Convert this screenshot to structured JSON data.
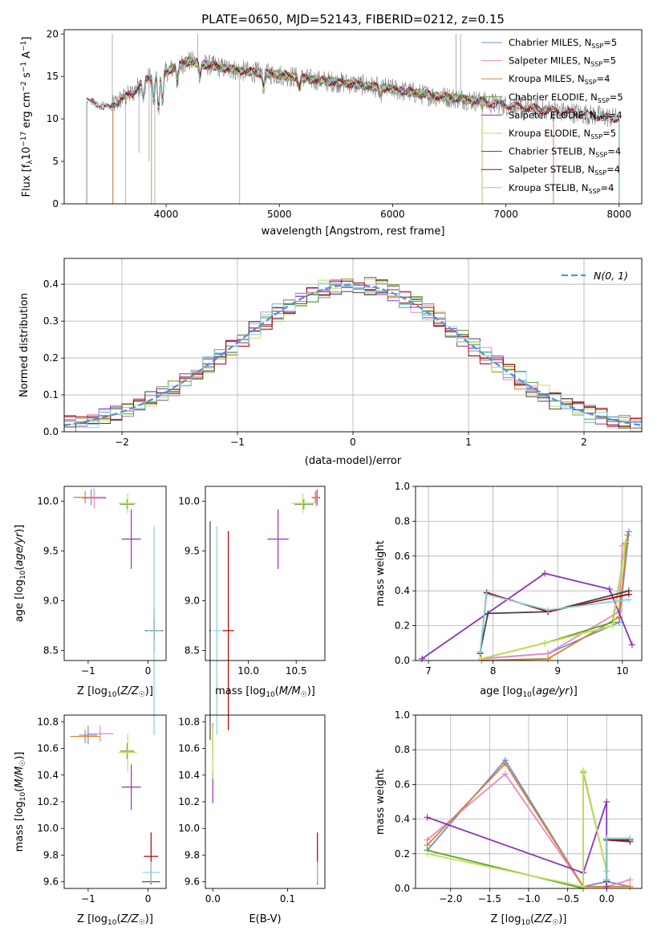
{
  "figure": {
    "title": "PLATE=0650, MJD=52143, FIBERID=0212, z=0.15"
  },
  "colors": {
    "Chabrier MILES": "#6a8fdc",
    "Salpeter MILES": "#e58ac2",
    "Kroupa MILES": "#d8842a",
    "Chabrier ELODIE": "#5aa02c",
    "Salpeter ELODIE": "#9032b8",
    "Kroupa ELODIE": "#c0e050",
    "Chabrier STELIB": "#444444",
    "Salpeter STELIB": "#b00000",
    "Kroupa STELIB": "#7fd6dc",
    "normal": "#5b8fd8",
    "data": "#808080"
  },
  "chart_data": [
    {
      "type": "line",
      "title": "PLATE=0650, MJD=52143, FIBERID=0212, z=0.15",
      "xlabel": "wavelength [Angstrom, rest frame]",
      "ylabel": "Flux [f_λ 10^-17 erg cm^-2 s^-1 A^-1]",
      "xlim": [
        3100,
        8200
      ],
      "ylim": [
        0,
        20.5
      ],
      "xticks": [
        4000,
        5000,
        6000,
        7000,
        8000
      ],
      "yticks": [
        0,
        5,
        10,
        15,
        20
      ],
      "legend_position": "right",
      "legend": [
        {
          "label": "Chabrier MILES, N",
          "sub": "SSP",
          "suffix": "=5",
          "key": "Chabrier MILES"
        },
        {
          "label": "Salpeter MILES, N",
          "sub": "SSP",
          "suffix": "=5",
          "key": "Salpeter MILES"
        },
        {
          "label": "Kroupa MILES, N",
          "sub": "SSP",
          "suffix": "=4",
          "key": "Kroupa MILES"
        },
        {
          "label": "Chabrier ELODIE, N",
          "sub": "SSP",
          "suffix": "=5",
          "key": "Chabrier ELODIE"
        },
        {
          "label": "Salpeter ELODIE, N",
          "sub": "SSP",
          "suffix": "=4",
          "key": "Salpeter ELODIE"
        },
        {
          "label": "Kroupa ELODIE, N",
          "sub": "SSP",
          "suffix": "=5",
          "key": "Kroupa ELODIE"
        },
        {
          "label": "Chabrier STELIB, N",
          "sub": "SSP",
          "suffix": "=4",
          "key": "Chabrier STELIB"
        },
        {
          "label": "Salpeter STELIB, N",
          "sub": "SSP",
          "suffix": "=4",
          "key": "Salpeter STELIB"
        },
        {
          "label": "Kroupa STELIB, N",
          "sub": "SSP",
          "suffix": "=4",
          "key": "Kroupa STELIB"
        }
      ],
      "continuum": [
        [
          3300,
          12.0
        ],
        [
          3400,
          11.8
        ],
        [
          3500,
          11.2
        ],
        [
          3600,
          12.3
        ],
        [
          3700,
          13.0
        ],
        [
          3800,
          14.5
        ],
        [
          3900,
          15.2
        ],
        [
          4000,
          15.5
        ],
        [
          4100,
          16.3
        ],
        [
          4200,
          16.8
        ],
        [
          4300,
          16.5
        ],
        [
          4500,
          16.0
        ],
        [
          4700,
          15.6
        ],
        [
          5000,
          15.2
        ],
        [
          5300,
          14.6
        ],
        [
          5600,
          14.2
        ],
        [
          6000,
          13.5
        ],
        [
          6300,
          12.8
        ],
        [
          6600,
          12.4
        ],
        [
          7000,
          11.6
        ],
        [
          7400,
          11.0
        ],
        [
          7800,
          10.4
        ],
        [
          8000,
          10.0
        ]
      ]
    },
    {
      "type": "bar",
      "xlabel": "(data-model)/error",
      "ylabel": "Normed distribution",
      "xlim": [
        -2.5,
        2.5
      ],
      "ylim": [
        0,
        0.47
      ],
      "xticks": [
        -2,
        -1,
        0,
        1,
        2
      ],
      "yticks": [
        0.0,
        0.1,
        0.2,
        0.3,
        0.4
      ],
      "grid": true,
      "legend_position": "top-right",
      "legend_label": "N(0, 1)",
      "bin_width": 0.1,
      "bin_start": -2.5
    },
    {
      "type": "scatter",
      "xlabel": "Z [log10(Z/Z☉)]",
      "ylabel": "age [log10(age/yr)]",
      "xlim": [
        -1.4,
        0.3
      ],
      "ylim": [
        8.4,
        10.15
      ],
      "xticks": [
        -1,
        0
      ],
      "yticks": [
        8.5,
        9.0,
        9.5,
        10.0
      ],
      "points": [
        {
          "key": "Chabrier MILES",
          "x": -0.95,
          "y": 10.04,
          "xerr": 0.25,
          "yerr": 0.08
        },
        {
          "key": "Salpeter MILES",
          "x": -0.9,
          "y": 10.03,
          "xerr": 0.2,
          "yerr": 0.1
        },
        {
          "key": "Kroupa MILES",
          "x": -1.05,
          "y": 10.04,
          "xerr": 0.2,
          "yerr": 0.06
        },
        {
          "key": "Chabrier ELODIE",
          "x": -0.35,
          "y": 9.97,
          "xerr": 0.12,
          "yerr": 0.05
        },
        {
          "key": "Salpeter ELODIE",
          "x": -0.28,
          "y": 9.62,
          "xerr": 0.16,
          "yerr": 0.3
        },
        {
          "key": "Kroupa ELODIE",
          "x": -0.34,
          "y": 9.98,
          "xerr": 0.15,
          "yerr": 0.1
        },
        {
          "key": "Chabrier STELIB",
          "x": 0.1,
          "y": 8.7,
          "xerr": 0.15,
          "yerr": 0.22
        },
        {
          "key": "Salpeter STELIB",
          "x": 0.1,
          "y": 8.7,
          "xerr": 0.08,
          "yerr": 0.1
        },
        {
          "key": "Kroupa STELIB",
          "x": 0.1,
          "y": 8.7,
          "xerr": 0.12,
          "yerr": 1.05
        }
      ]
    },
    {
      "type": "scatter",
      "xlabel": "mass [log10(M/M☉)]",
      "ylabel": "",
      "xlim": [
        9.55,
        10.8
      ],
      "ylim": [
        8.4,
        10.15
      ],
      "xticks": [
        10.0,
        10.5
      ],
      "yticks": [
        8.5,
        9.0,
        9.5,
        10.0
      ],
      "points": [
        {
          "key": "Chabrier MILES",
          "x": 10.72,
          "y": 10.04,
          "xerr": 0.03,
          "yerr": 0.08
        },
        {
          "key": "Salpeter MILES",
          "x": 10.71,
          "y": 10.03,
          "xerr": 0.04,
          "yerr": 0.08
        },
        {
          "key": "Kroupa MILES",
          "x": 10.7,
          "y": 10.04,
          "xerr": 0.04,
          "yerr": 0.06
        },
        {
          "key": "Chabrier ELODIE",
          "x": 10.58,
          "y": 9.97,
          "xerr": 0.1,
          "yerr": 0.05
        },
        {
          "key": "Salpeter ELODIE",
          "x": 10.31,
          "y": 9.62,
          "xerr": 0.11,
          "yerr": 0.3
        },
        {
          "key": "Kroupa ELODIE",
          "x": 10.57,
          "y": 9.98,
          "xerr": 0.12,
          "yerr": 0.1
        },
        {
          "key": "Chabrier STELIB",
          "x": 9.6,
          "y": 8.7,
          "xerr": 0.01,
          "yerr": 1.1
        },
        {
          "key": "Salpeter STELIB",
          "x": 9.79,
          "y": 8.7,
          "xerr": 0.06,
          "yerr": 1.0
        },
        {
          "key": "Kroupa STELIB",
          "x": 9.67,
          "y": 8.7,
          "xerr": 0.04,
          "yerr": 1.05
        }
      ]
    },
    {
      "type": "line",
      "xlabel": "age [log10(age/yr)]",
      "ylabel": "mass weight",
      "xlim": [
        6.8,
        10.3
      ],
      "ylim": [
        0,
        1.0
      ],
      "xticks": [
        7,
        8,
        9,
        10
      ],
      "yticks": [
        0.0,
        0.2,
        0.4,
        0.6,
        0.8,
        1.0
      ],
      "grid": true,
      "series": [
        {
          "key": "Chabrier MILES",
          "x": [
            7.82,
            8.85,
            9.95,
            10.1
          ],
          "y": [
            0.01,
            0.04,
            0.22,
            0.74
          ]
        },
        {
          "key": "Salpeter MILES",
          "x": [
            7.82,
            8.85,
            9.95,
            10.0
          ],
          "y": [
            0.01,
            0.04,
            0.28,
            0.66
          ]
        },
        {
          "key": "Kroupa MILES",
          "x": [
            7.82,
            8.85,
            9.95,
            10.08
          ],
          "y": [
            0.0,
            0.01,
            0.25,
            0.72
          ]
        },
        {
          "key": "Chabrier ELODIE",
          "x": [
            7.82,
            8.8,
            9.85,
            10.05
          ],
          "y": [
            0.01,
            0.1,
            0.22,
            0.67
          ]
        },
        {
          "key": "Salpeter ELODIE",
          "x": [
            6.9,
            8.8,
            9.8,
            10.15
          ],
          "y": [
            0.01,
            0.5,
            0.41,
            0.09
          ]
        },
        {
          "key": "Kroupa ELODIE",
          "x": [
            7.82,
            8.8,
            9.85,
            10.05
          ],
          "y": [
            0.01,
            0.1,
            0.2,
            0.68
          ]
        },
        {
          "key": "Chabrier STELIB",
          "x": [
            7.8,
            7.92,
            8.85,
            10.1
          ],
          "y": [
            0.05,
            0.27,
            0.28,
            0.4
          ]
        },
        {
          "key": "Salpeter STELIB",
          "x": [
            7.8,
            7.9,
            8.85,
            10.1
          ],
          "y": [
            0.04,
            0.39,
            0.28,
            0.38
          ]
        },
        {
          "key": "Kroupa STELIB",
          "x": [
            7.8,
            7.9,
            8.85,
            10.1
          ],
          "y": [
            0.05,
            0.38,
            0.29,
            0.35
          ]
        }
      ]
    },
    {
      "type": "scatter",
      "xlabel": "Z [log10(Z/Z☉)]",
      "ylabel": "mass [log10(M/M☉)]",
      "xlim": [
        -1.4,
        0.3
      ],
      "ylim": [
        9.55,
        10.85
      ],
      "xticks": [
        -1,
        0
      ],
      "yticks": [
        9.6,
        9.8,
        10.0,
        10.2,
        10.4,
        10.6,
        10.8
      ],
      "points": [
        {
          "key": "Chabrier MILES",
          "x": -1.0,
          "y": 10.7,
          "xerr": 0.15,
          "yerr": 0.07
        },
        {
          "key": "Salpeter MILES",
          "x": -0.8,
          "y": 10.71,
          "xerr": 0.22,
          "yerr": 0.06
        },
        {
          "key": "Kroupa MILES",
          "x": -1.05,
          "y": 10.69,
          "xerr": 0.25,
          "yerr": 0.05
        },
        {
          "key": "Chabrier ELODIE",
          "x": -0.35,
          "y": 10.58,
          "xerr": 0.12,
          "yerr": 0.06
        },
        {
          "key": "Salpeter ELODIE",
          "x": -0.28,
          "y": 10.31,
          "xerr": 0.16,
          "yerr": 0.17
        },
        {
          "key": "Kroupa ELODIE",
          "x": -0.34,
          "y": 10.57,
          "xerr": 0.15,
          "yerr": 0.14
        },
        {
          "key": "Chabrier STELIB",
          "x": 0.05,
          "y": 9.6,
          "xerr": 0.15,
          "yerr": 0.02
        },
        {
          "key": "Salpeter STELIB",
          "x": 0.05,
          "y": 9.79,
          "xerr": 0.12,
          "yerr": 0.18
        },
        {
          "key": "Kroupa STELIB",
          "x": 0.05,
          "y": 9.67,
          "xerr": 0.15,
          "yerr": 0.08
        }
      ]
    },
    {
      "type": "scatter",
      "xlabel": "E(B-V)",
      "ylabel": "",
      "xlim": [
        -0.01,
        0.15
      ],
      "ylim": [
        9.55,
        10.85
      ],
      "xticks": [
        0.0,
        0.1
      ],
      "yticks": [
        9.6,
        9.8,
        10.0,
        10.2,
        10.4,
        10.6,
        10.8
      ],
      "points": [
        {
          "key": "Chabrier MILES",
          "x": 0.0,
          "y": 10.7,
          "xerr": 0.0,
          "yerr": 0.07
        },
        {
          "key": "Salpeter MILES",
          "x": 0.0,
          "y": 10.71,
          "xerr": 0.0,
          "yerr": 0.06
        },
        {
          "key": "Kroupa MILES",
          "x": 0.0,
          "y": 10.69,
          "xerr": 0.0,
          "yerr": 0.1
        },
        {
          "key": "Chabrier ELODIE",
          "x": 0.0,
          "y": 10.58,
          "xerr": 0.0,
          "yerr": 0.08
        },
        {
          "key": "Salpeter ELODIE",
          "x": 0.0,
          "y": 10.31,
          "xerr": 0.0,
          "yerr": 0.12
        },
        {
          "key": "Kroupa ELODIE",
          "x": 0.0,
          "y": 10.57,
          "xerr": 0.0,
          "yerr": 0.2
        },
        {
          "key": "Chabrier STELIB",
          "x": 0.14,
          "y": 9.6,
          "xerr": 0.0,
          "yerr": 0.02
        },
        {
          "key": "Salpeter STELIB",
          "x": 0.14,
          "y": 9.79,
          "xerr": 0.0,
          "yerr": 0.18
        },
        {
          "key": "Kroupa STELIB",
          "x": 0.14,
          "y": 9.67,
          "xerr": 0.0,
          "yerr": 0.08
        }
      ]
    },
    {
      "type": "line",
      "xlabel": "Z [log10(Z/Z☉)]",
      "ylabel": "mass weight",
      "xlim": [
        -2.45,
        0.45
      ],
      "ylim": [
        0,
        1.0
      ],
      "xticks": [
        -2.0,
        -1.5,
        -1.0,
        -0.5,
        0.0
      ],
      "yticks": [
        0.0,
        0.2,
        0.4,
        0.6,
        0.8,
        1.0
      ],
      "grid": true,
      "series": [
        {
          "key": "Chabrier MILES",
          "x": [
            -2.3,
            -1.3,
            -0.3,
            0.0,
            0.3
          ],
          "y": [
            0.22,
            0.74,
            0.01,
            0.04,
            0.01
          ]
        },
        {
          "key": "Salpeter MILES",
          "x": [
            -2.3,
            -1.3,
            -0.3,
            0.0,
            0.3
          ],
          "y": [
            0.28,
            0.66,
            0.01,
            0.01,
            0.05
          ]
        },
        {
          "key": "Kroupa MILES",
          "x": [
            -2.3,
            -1.3,
            -0.3,
            0.0,
            0.3
          ],
          "y": [
            0.25,
            0.72,
            0.01,
            0.01,
            0.01
          ]
        },
        {
          "key": "Chabrier ELODIE",
          "x": [
            -2.3,
            -0.3,
            -0.3,
            0.0
          ],
          "y": [
            0.22,
            0.0,
            0.67,
            0.1
          ]
        },
        {
          "key": "Salpeter ELODIE",
          "x": [
            -2.3,
            -0.3,
            0.0,
            0.0
          ],
          "y": [
            0.41,
            0.09,
            0.5,
            0.01
          ]
        },
        {
          "key": "Kroupa ELODIE",
          "x": [
            -2.3,
            -0.3,
            -0.3,
            0.0
          ],
          "y": [
            0.2,
            0.01,
            0.68,
            0.1
          ]
        },
        {
          "key": "Chabrier STELIB",
          "x": [
            0.0,
            0.0,
            0.3
          ],
          "y": [
            0.05,
            0.28,
            0.27
          ]
        },
        {
          "key": "Salpeter STELIB",
          "x": [
            0.0,
            0.0,
            0.3
          ],
          "y": [
            0.04,
            0.28,
            0.28
          ]
        },
        {
          "key": "Kroupa STELIB",
          "x": [
            0.0,
            0.0,
            0.3
          ],
          "y": [
            0.05,
            0.29,
            0.29
          ]
        }
      ]
    }
  ]
}
